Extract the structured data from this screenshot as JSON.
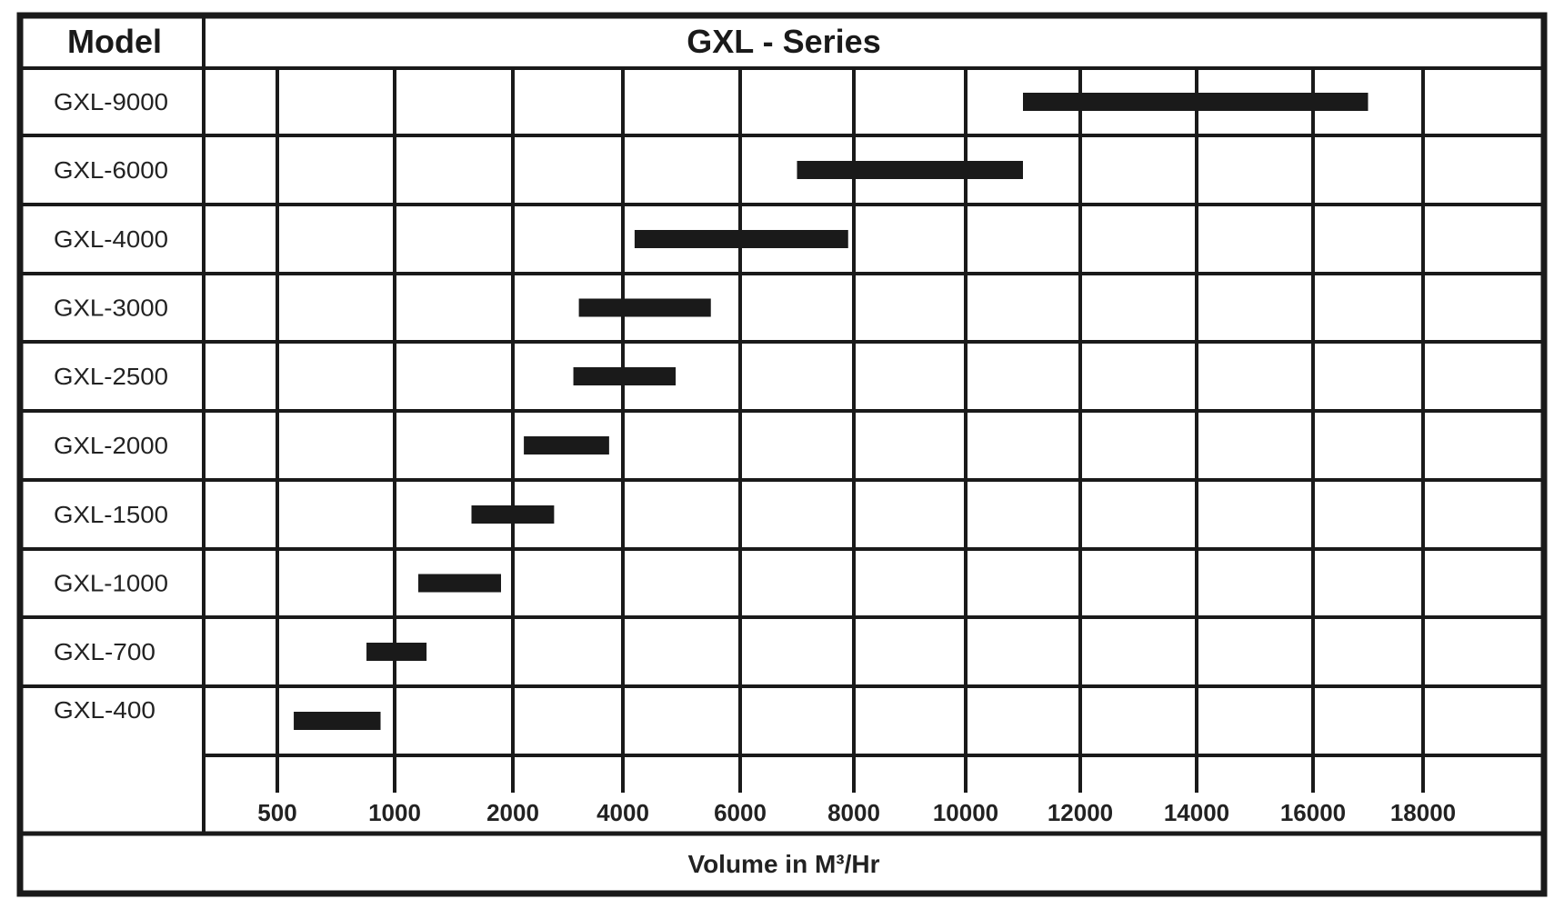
{
  "chart_data": {
    "type": "bar",
    "orientation": "horizontal-range",
    "title": "GXL - Series",
    "ylabel": "Model",
    "xlabel": "Volume in M³/Hr",
    "x_ticks": [
      500,
      1000,
      2000,
      4000,
      6000,
      8000,
      10000,
      12000,
      14000,
      16000,
      18000
    ],
    "x_tick_labels": [
      "500",
      "1000",
      "2000",
      "4000",
      "6000",
      "8000",
      "10000",
      "12000",
      "14000",
      "16000",
      "18000"
    ],
    "x_scale": "non-uniform (equally spaced tick labels)",
    "grid": true,
    "bar_color": "#1a1a1a",
    "categories": [
      "GXL-9000",
      "GXL-6000",
      "GXL-4000",
      "GXL-3000",
      "GXL-2500",
      "GXL-2000",
      "GXL-1500",
      "GXL-1000",
      "GXL-700",
      "GXL-400"
    ],
    "ranges": [
      [
        11000,
        17000
      ],
      [
        7000,
        11000
      ],
      [
        4200,
        7900
      ],
      [
        3200,
        5500
      ],
      [
        3100,
        4900
      ],
      [
        2200,
        3750
      ],
      [
        1650,
        2750
      ],
      [
        1200,
        1900
      ],
      [
        880,
        1270
      ],
      [
        570,
        940
      ]
    ]
  }
}
